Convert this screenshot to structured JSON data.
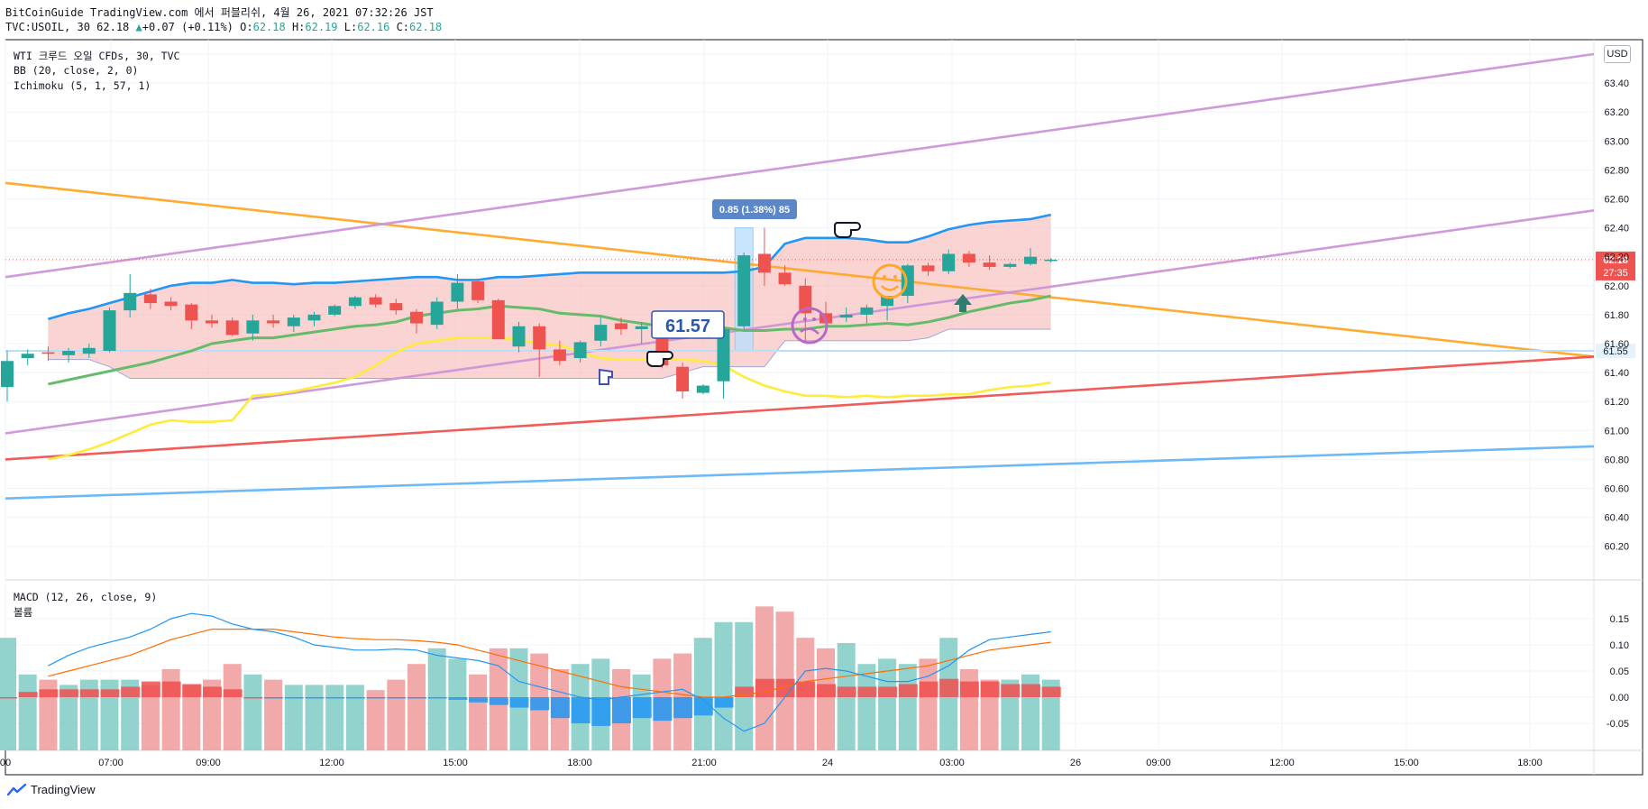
{
  "header": {
    "publish_line": "BitCoinGuide TradingView.com 에서 퍼블리쉬, 4월 26, 2021 07:32:26 JST",
    "symbol": "TVC:USOIL, 30",
    "last": "62.18",
    "arrow": "▲",
    "change": "+0.07 (+0.11%)",
    "o_label": "O:",
    "o_val": "62.18",
    "h_label": "H:",
    "h_val": "62.19",
    "l_label": "L:",
    "l_val": "62.16",
    "c_label": "C:",
    "c_val": "62.18"
  },
  "legend": {
    "title": "WTI 크루드 오일 CFDs, 30, TVC",
    "bb": "BB (20, close, 2, 0)",
    "ichimoku": "Ichimoku (5, 1, 57, 1)",
    "macd": "MACD (12, 26, close, 9)",
    "macd_sub": "볼륨"
  },
  "currency_button": "USD",
  "footer_brand": "TradingView",
  "colors": {
    "up": "#26a69a",
    "down": "#ef5350",
    "bb_upper": "#2196f3",
    "bb_basis": "#66bb6a",
    "ichimoku_lagging": "#ffeb3b",
    "bb_fill": "#f8bbbb",
    "trend_orange": "#ffa726",
    "trend_violet": "#ce93d8",
    "trend_red": "#ef5350",
    "trend_blue": "#64b5f6",
    "price_label_bg": "#ef5350"
  },
  "chart_data": [
    {
      "type": "candlestick",
      "panel": "price",
      "y_ticks": [
        "63.60",
        "63.40",
        "63.20",
        "63.00",
        "62.80",
        "62.60",
        "62.40",
        "62.20",
        "62.00",
        "61.80",
        "61.60",
        "61.40",
        "61.20",
        "61.00",
        "60.80",
        "60.60",
        "60.40",
        "60.20"
      ],
      "ylim": [
        60.0,
        63.65
      ],
      "x_ticks": [
        "00",
        "07:00",
        "09:00",
        "12:00",
        "15:00",
        "18:00",
        "21:00",
        "24",
        "03:00",
        "26",
        "09:00",
        "12:00",
        "15:00",
        "18:00"
      ],
      "last_price_label": "62.18",
      "countdown_label": "27:35",
      "horizontal_line_label": "61.55",
      "horizontal_line_value": 61.55,
      "measure_label": "0.85 (1.38%) 85",
      "measure_range": [
        61.55,
        62.4
      ],
      "callout_label": "61.57",
      "candles": [
        {
          "o": 61.3,
          "h": 61.55,
          "l": 61.2,
          "c": 61.48
        },
        {
          "o": 61.5,
          "h": 61.56,
          "l": 61.45,
          "c": 61.53
        },
        {
          "o": 61.54,
          "h": 61.58,
          "l": 61.48,
          "c": 61.53
        },
        {
          "o": 61.52,
          "h": 61.57,
          "l": 61.47,
          "c": 61.55
        },
        {
          "o": 61.53,
          "h": 61.6,
          "l": 61.5,
          "c": 61.57
        },
        {
          "o": 61.55,
          "h": 61.85,
          "l": 61.54,
          "c": 61.83
        },
        {
          "o": 61.83,
          "h": 62.08,
          "l": 61.78,
          "c": 61.95
        },
        {
          "o": 61.94,
          "h": 61.98,
          "l": 61.84,
          "c": 61.88
        },
        {
          "o": 61.89,
          "h": 61.92,
          "l": 61.83,
          "c": 61.86
        },
        {
          "o": 61.87,
          "h": 61.88,
          "l": 61.7,
          "c": 61.76
        },
        {
          "o": 61.76,
          "h": 61.8,
          "l": 61.71,
          "c": 61.74
        },
        {
          "o": 61.76,
          "h": 61.78,
          "l": 61.65,
          "c": 61.66
        },
        {
          "o": 61.67,
          "h": 61.8,
          "l": 61.62,
          "c": 61.76
        },
        {
          "o": 61.76,
          "h": 61.8,
          "l": 61.71,
          "c": 61.74
        },
        {
          "o": 61.72,
          "h": 61.8,
          "l": 61.68,
          "c": 61.78
        },
        {
          "o": 61.76,
          "h": 61.82,
          "l": 61.72,
          "c": 61.8
        },
        {
          "o": 61.8,
          "h": 61.87,
          "l": 61.79,
          "c": 61.86
        },
        {
          "o": 61.86,
          "h": 61.93,
          "l": 61.84,
          "c": 61.92
        },
        {
          "o": 61.92,
          "h": 61.94,
          "l": 61.85,
          "c": 61.87
        },
        {
          "o": 61.88,
          "h": 61.91,
          "l": 61.8,
          "c": 61.83
        },
        {
          "o": 61.82,
          "h": 61.84,
          "l": 61.67,
          "c": 61.74
        },
        {
          "o": 61.73,
          "h": 61.92,
          "l": 61.7,
          "c": 61.89
        },
        {
          "o": 61.89,
          "h": 62.08,
          "l": 61.84,
          "c": 62.02
        },
        {
          "o": 62.03,
          "h": 62.04,
          "l": 61.88,
          "c": 61.9
        },
        {
          "o": 61.9,
          "h": 61.91,
          "l": 61.64,
          "c": 61.63
        },
        {
          "o": 61.58,
          "h": 61.75,
          "l": 61.54,
          "c": 61.72
        },
        {
          "o": 61.72,
          "h": 61.74,
          "l": 61.37,
          "c": 61.56
        },
        {
          "o": 61.56,
          "h": 61.62,
          "l": 61.45,
          "c": 61.48
        },
        {
          "o": 61.5,
          "h": 61.62,
          "l": 61.47,
          "c": 61.61
        },
        {
          "o": 61.62,
          "h": 61.78,
          "l": 61.58,
          "c": 61.73
        },
        {
          "o": 61.74,
          "h": 61.78,
          "l": 61.66,
          "c": 61.7
        },
        {
          "o": 61.7,
          "h": 61.75,
          "l": 61.6,
          "c": 61.72
        },
        {
          "o": 61.72,
          "h": 61.74,
          "l": 61.43,
          "c": 61.45
        },
        {
          "o": 61.44,
          "h": 61.47,
          "l": 61.22,
          "c": 61.27
        },
        {
          "o": 61.26,
          "h": 61.32,
          "l": 61.25,
          "c": 61.31
        },
        {
          "o": 61.34,
          "h": 61.73,
          "l": 61.22,
          "c": 61.7
        },
        {
          "o": 61.72,
          "h": 62.23,
          "l": 61.7,
          "c": 62.21
        },
        {
          "o": 62.22,
          "h": 62.4,
          "l": 62.0,
          "c": 62.09
        },
        {
          "o": 62.09,
          "h": 62.14,
          "l": 62.0,
          "c": 62.01
        },
        {
          "o": 62.0,
          "h": 62.05,
          "l": 61.62,
          "c": 61.81
        },
        {
          "o": 61.81,
          "h": 61.89,
          "l": 61.7,
          "c": 61.74
        },
        {
          "o": 61.78,
          "h": 61.85,
          "l": 61.75,
          "c": 61.8
        },
        {
          "o": 61.8,
          "h": 61.87,
          "l": 61.74,
          "c": 61.85
        },
        {
          "o": 61.86,
          "h": 61.93,
          "l": 61.76,
          "c": 61.93
        },
        {
          "o": 61.93,
          "h": 62.15,
          "l": 61.88,
          "c": 62.14
        },
        {
          "o": 62.14,
          "h": 62.16,
          "l": 62.07,
          "c": 62.1
        },
        {
          "o": 62.1,
          "h": 62.25,
          "l": 62.08,
          "c": 62.22
        },
        {
          "o": 62.22,
          "h": 62.24,
          "l": 62.13,
          "c": 62.16
        },
        {
          "o": 62.16,
          "h": 62.21,
          "l": 62.11,
          "c": 62.13
        },
        {
          "o": 62.13,
          "h": 62.16,
          "l": 62.12,
          "c": 62.15
        },
        {
          "o": 62.15,
          "h": 62.26,
          "l": 62.14,
          "c": 62.2
        },
        {
          "o": 62.18,
          "h": 62.19,
          "l": 62.16,
          "c": 62.18
        }
      ],
      "bb_upper": [
        61.77,
        61.81,
        61.84,
        61.88,
        61.92,
        61.96,
        62.0,
        62.02,
        62.02,
        62.04,
        62.02,
        62.02,
        62.01,
        62.02,
        62.02,
        62.03,
        62.04,
        62.05,
        62.06,
        62.06,
        62.04,
        62.04,
        62.06,
        62.06,
        62.07,
        62.08,
        62.09,
        62.09,
        62.09,
        62.09,
        62.09,
        62.09,
        62.09,
        62.09,
        62.1,
        62.13,
        62.29,
        62.33,
        62.33,
        62.33,
        62.32,
        62.3,
        62.3,
        62.34,
        62.39,
        62.42,
        62.44,
        62.45,
        62.46,
        62.49
      ],
      "bb_basis": [
        61.32,
        61.35,
        61.38,
        61.41,
        61.44,
        61.47,
        61.51,
        61.55,
        61.6,
        61.62,
        61.64,
        61.64,
        61.66,
        61.68,
        61.7,
        61.72,
        61.73,
        61.75,
        61.79,
        61.81,
        61.83,
        61.84,
        61.86,
        61.85,
        61.84,
        61.81,
        61.8,
        61.79,
        61.76,
        61.74,
        61.72,
        61.71,
        61.72,
        61.71,
        61.69,
        61.69,
        61.7,
        61.7,
        61.72,
        61.72,
        61.73,
        61.74,
        61.73,
        61.75,
        61.78,
        61.82,
        61.85,
        61.88,
        61.9,
        61.93
      ],
      "bb_lower": [
        61.49,
        61.49,
        61.49,
        61.44,
        61.36,
        61.36,
        61.36,
        61.36,
        61.36,
        61.36,
        61.36,
        61.36,
        61.36,
        61.36,
        61.36,
        61.36,
        61.36,
        61.36,
        61.36,
        61.36,
        61.36,
        61.36,
        61.36,
        61.36,
        61.36,
        61.36,
        61.36,
        61.36,
        61.36,
        61.36,
        61.36,
        61.4,
        61.44,
        61.44,
        61.44,
        61.44,
        61.62,
        61.62,
        61.62,
        61.62,
        61.62,
        61.62,
        61.62,
        61.64,
        61.7,
        61.7,
        61.7,
        61.7,
        61.7,
        61.7
      ],
      "ichimoku_lagging": [
        60.8,
        60.83,
        60.87,
        60.92,
        60.98,
        61.04,
        61.07,
        61.06,
        61.06,
        61.07,
        61.24,
        61.25,
        61.27,
        61.3,
        61.33,
        61.37,
        61.45,
        61.54,
        61.6,
        61.62,
        61.64,
        61.64,
        61.64,
        61.63,
        61.6,
        61.59,
        61.54,
        61.5,
        61.49,
        61.49,
        61.49,
        61.49,
        61.48,
        61.45,
        61.37,
        61.31,
        61.27,
        61.24,
        61.24,
        61.23,
        61.24,
        61.23,
        61.24,
        61.24,
        61.25,
        61.25,
        61.28,
        61.3,
        61.31,
        61.33
      ],
      "trendlines": [
        {
          "name": "orange",
          "from": [
            0,
            62.71
          ],
          "to": [
            80,
            61.51
          ]
        },
        {
          "name": "violet-upper",
          "from": [
            0,
            62.06
          ],
          "to": [
            80,
            63.6
          ]
        },
        {
          "name": "violet-lower",
          "from": [
            0,
            60.98
          ],
          "to": [
            80,
            62.52
          ]
        },
        {
          "name": "red",
          "from": [
            0,
            60.8
          ],
          "to": [
            80,
            61.51
          ]
        },
        {
          "name": "blue",
          "from": [
            0,
            60.53
          ],
          "to": [
            80,
            60.89
          ]
        }
      ]
    },
    {
      "type": "bar",
      "panel": "macd",
      "title": "MACD (12, 26, close, 9)",
      "y_ticks": [
        "0.15",
        "0.10",
        "0.05",
        "0.00",
        "-0.05"
      ],
      "ylim": [
        -0.085,
        0.17
      ],
      "histogram": [
        0.0,
        0.01,
        0.015,
        0.015,
        0.015,
        0.015,
        0.02,
        0.03,
        0.03,
        0.025,
        0.02,
        0.015,
        0.0,
        -0.002,
        -0.002,
        -0.002,
        -0.002,
        -0.002,
        -0.002,
        -0.002,
        -0.002,
        -0.002,
        -0.005,
        -0.01,
        -0.015,
        -0.02,
        -0.025,
        -0.04,
        -0.05,
        -0.055,
        -0.05,
        -0.04,
        -0.045,
        -0.04,
        -0.035,
        -0.02,
        0.02,
        0.035,
        0.035,
        0.03,
        0.025,
        0.02,
        0.02,
        0.02,
        0.025,
        0.03,
        0.035,
        0.03,
        0.03,
        0.025,
        0.025,
        0.02
      ],
      "volume": [
        0.11,
        0.04,
        0.03,
        0.02,
        0.03,
        0.03,
        0.03,
        0.02,
        0.05,
        0.02,
        0.03,
        0.06,
        0.04,
        0.03,
        0.02,
        0.02,
        0.02,
        0.02,
        0.01,
        0.03,
        0.06,
        0.09,
        0.07,
        0.04,
        0.09,
        0.09,
        0.08,
        0.05,
        0.06,
        0.07,
        0.05,
        0.04,
        0.07,
        0.08,
        0.11,
        0.14,
        0.14,
        0.17,
        0.16,
        0.11,
        0.09,
        0.1,
        0.06,
        0.07,
        0.06,
        0.07,
        0.11,
        0.05,
        0.03,
        0.03,
        0.04,
        0.03
      ],
      "macd": [
        0.06,
        0.08,
        0.095,
        0.105,
        0.115,
        0.13,
        0.15,
        0.16,
        0.155,
        0.14,
        0.13,
        0.125,
        0.115,
        0.1,
        0.095,
        0.09,
        0.09,
        0.092,
        0.09,
        0.08,
        0.075,
        0.07,
        0.06,
        0.03,
        0.02,
        0.01,
        0.0,
        -0.005,
        0.0,
        0.005,
        0.01,
        0.015,
        -0.005,
        -0.04,
        -0.065,
        -0.05,
        0.0,
        0.05,
        0.055,
        0.05,
        0.04,
        0.03,
        0.03,
        0.04,
        0.06,
        0.09,
        0.11,
        0.115,
        0.12,
        0.125
      ],
      "signal": [
        0.04,
        0.05,
        0.06,
        0.07,
        0.08,
        0.095,
        0.11,
        0.12,
        0.13,
        0.13,
        0.13,
        0.13,
        0.125,
        0.12,
        0.115,
        0.112,
        0.11,
        0.11,
        0.108,
        0.105,
        0.1,
        0.09,
        0.08,
        0.07,
        0.06,
        0.05,
        0.04,
        0.03,
        0.02,
        0.015,
        0.01,
        0.005,
        0.0,
        0.0,
        0.005,
        0.01,
        0.02,
        0.03,
        0.035,
        0.04,
        0.045,
        0.05,
        0.055,
        0.06,
        0.07,
        0.08,
        0.09,
        0.095,
        0.1,
        0.105
      ]
    }
  ]
}
